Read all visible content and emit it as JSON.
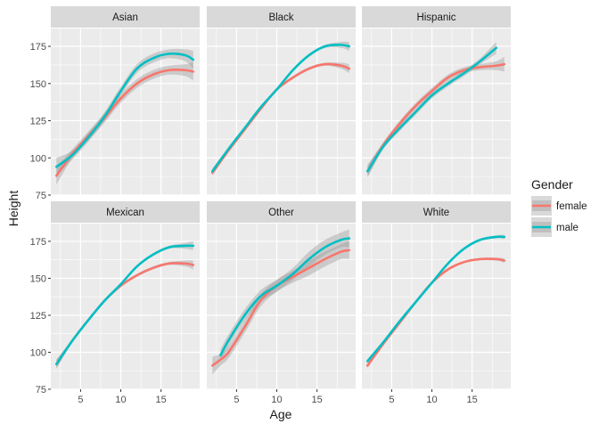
{
  "chart_data": {
    "type": "line",
    "xlabel": "Age",
    "ylabel": "Height",
    "xlim": [
      1.3,
      19.8
    ],
    "ylim": [
      75,
      187
    ],
    "x_ticks": [
      5,
      10,
      15
    ],
    "y_ticks": [
      75,
      100,
      125,
      150,
      175
    ],
    "grid": true,
    "legend": {
      "title": "Gender",
      "position": "right",
      "entries": [
        {
          "name": "female",
          "color": "#F8766D"
        },
        {
          "name": "male",
          "color": "#00BFC4"
        }
      ]
    },
    "colors": {
      "female": "#F8766D",
      "male": "#00BFC4",
      "panel_bg": "#EBEBEB",
      "strip_bg": "#D9D9D9",
      "ribbon": "#999999"
    },
    "panels": [
      {
        "title": "Asian",
        "series": [
          {
            "name": "female",
            "x": [
              2,
              4,
              6,
              8,
              10,
              12,
              14,
              16,
              18,
              19
            ],
            "y": [
              88,
              103,
              115,
              127,
              140,
              150,
              156,
              159,
              159,
              158
            ],
            "se": [
              6,
              3,
              3,
              3,
              3,
              3,
              3,
              3,
              4,
              6
            ]
          },
          {
            "name": "male",
            "x": [
              2,
              4,
              6,
              8,
              10,
              12,
              14,
              16,
              18,
              19
            ],
            "y": [
              94,
              102,
              114,
              128,
              145,
              160,
              167,
              170,
              169,
              166
            ],
            "se": [
              6,
              3,
              3,
              3,
              3,
              3,
              3,
              3,
              4,
              6
            ]
          }
        ]
      },
      {
        "title": "Black",
        "series": [
          {
            "name": "female",
            "x": [
              2,
              4,
              6,
              8,
              10,
              12,
              14,
              16,
              18,
              19
            ],
            "y": [
              90,
              105,
              119,
              133,
              146,
              154,
              160,
              163,
              162,
              160
            ],
            "se": [
              2,
              1,
              1,
              1,
              1,
              1,
              1,
              1,
              2,
              3
            ]
          },
          {
            "name": "male",
            "x": [
              2,
              4,
              6,
              8,
              10,
              12,
              14,
              16,
              18,
              19
            ],
            "y": [
              91,
              106,
              120,
              134,
              146,
              159,
              169,
              175,
              176,
              175
            ],
            "se": [
              2,
              1,
              1,
              1,
              1,
              1,
              1,
              1,
              2,
              3
            ]
          }
        ]
      },
      {
        "title": "Hispanic",
        "series": [
          {
            "name": "female",
            "x": [
              2,
              4,
              6,
              8,
              10,
              12,
              14,
              16,
              18,
              19
            ],
            "y": [
              91,
              109,
              123,
              135,
              145,
              154,
              159,
              161,
              162,
              163
            ],
            "se": [
              4,
              2,
              2,
              2,
              2,
              2,
              2,
              2,
              3,
              5
            ]
          },
          {
            "name": "male",
            "x": [
              2,
              4,
              6,
              8,
              10,
              12,
              14,
              16,
              18
            ],
            "y": [
              91,
              108,
              120,
              131,
              142,
              150,
              157,
              165,
              174
            ],
            "se": [
              4,
              2,
              2,
              2,
              2,
              2,
              2,
              2,
              4
            ]
          }
        ]
      },
      {
        "title": "Mexican",
        "series": [
          {
            "name": "female",
            "x": [
              2,
              4,
              6,
              8,
              10,
              12,
              14,
              16,
              18,
              19
            ],
            "y": [
              92,
              108,
              122,
              135,
              145,
              152,
              157,
              160,
              160,
              159
            ],
            "se": [
              3,
              1,
              1,
              1,
              1,
              1,
              1,
              1,
              2,
              3
            ]
          },
          {
            "name": "male",
            "x": [
              2,
              4,
              6,
              8,
              10,
              12,
              14,
              16,
              18,
              19
            ],
            "y": [
              92,
              108,
              122,
              135,
              146,
              158,
              166,
              171,
              172,
              172
            ],
            "se": [
              3,
              1,
              1,
              1,
              1,
              1,
              1,
              1,
              2,
              3
            ]
          }
        ]
      },
      {
        "title": "Other",
        "series": [
          {
            "name": "female",
            "x": [
              2,
              3,
              4,
              6,
              8,
              10,
              12,
              14,
              16,
              18,
              19
            ],
            "y": [
              91,
              95,
              100,
              117,
              135,
              145,
              151,
              157,
              163,
              168,
              169
            ],
            "se": [
              6,
              4,
              4,
              4,
              4,
              4,
              4,
              5,
              5,
              5,
              6
            ]
          },
          {
            "name": "male",
            "x": [
              3,
              4,
              6,
              8,
              10,
              12,
              14,
              16,
              18,
              19
            ],
            "y": [
              98,
              108,
              125,
              138,
              145,
              153,
              163,
              171,
              176,
              177
            ],
            "se": [
              4,
              4,
              4,
              4,
              4,
              4,
              5,
              5,
              5,
              6
            ]
          }
        ]
      },
      {
        "title": "White",
        "series": [
          {
            "name": "female",
            "x": [
              2,
              4,
              6,
              8,
              10,
              12,
              14,
              16,
              18,
              19
            ],
            "y": [
              91,
              106,
              120,
              134,
              147,
              156,
              161,
              163,
              163,
              162
            ],
            "se": [
              1.5,
              0.8,
              0.8,
              0.8,
              0.8,
              0.8,
              0.8,
              0.8,
              1,
              1.5
            ]
          },
          {
            "name": "male",
            "x": [
              2,
              4,
              6,
              8,
              10,
              12,
              14,
              16,
              18,
              19
            ],
            "y": [
              94,
              107,
              121,
              134,
              147,
              160,
              170,
              176,
              178,
              178
            ],
            "se": [
              1.5,
              0.8,
              0.8,
              0.8,
              0.8,
              0.8,
              0.8,
              0.8,
              1,
              1.5
            ]
          }
        ]
      }
    ]
  }
}
